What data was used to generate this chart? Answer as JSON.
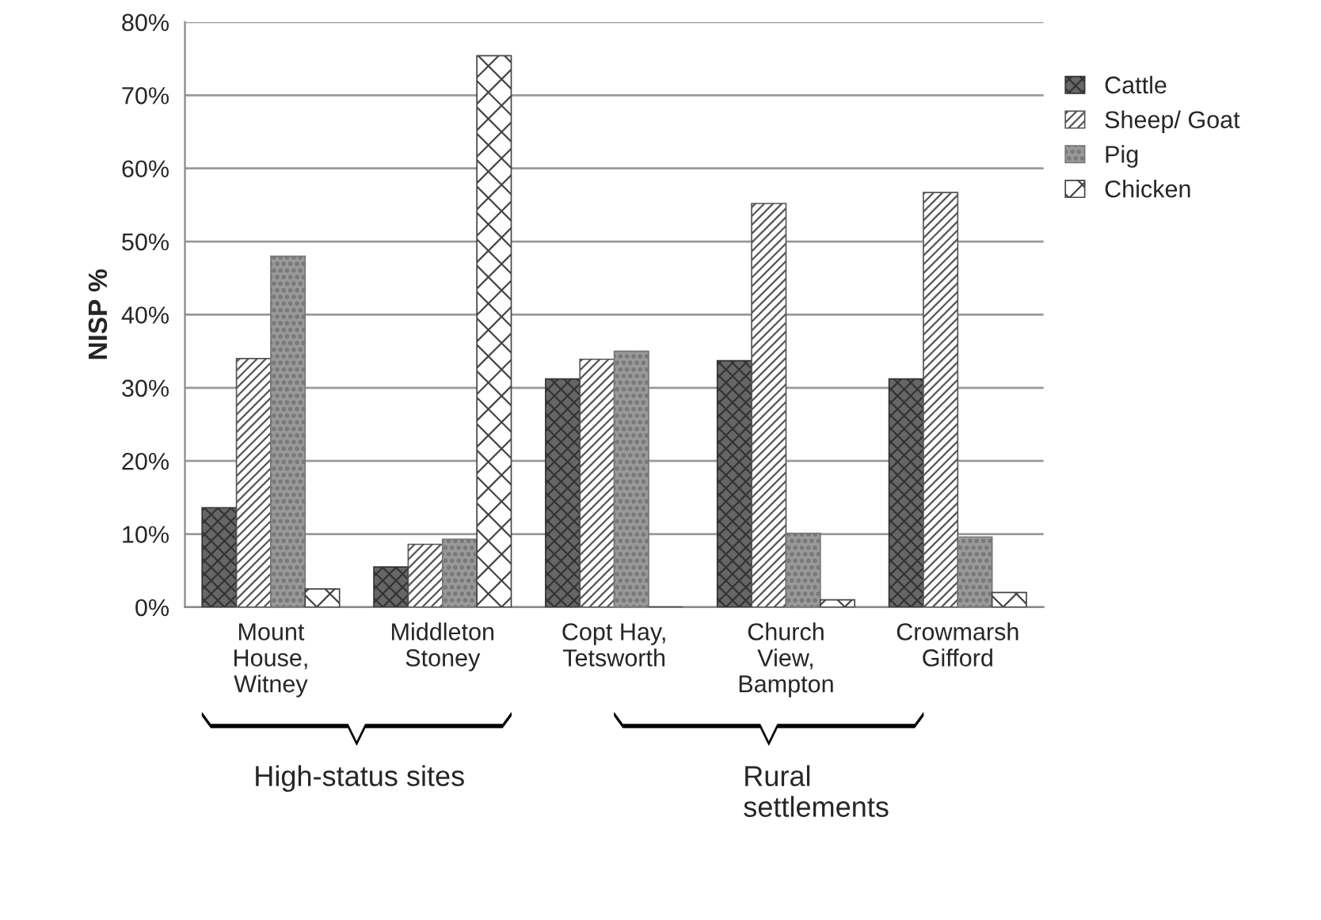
{
  "chart_data": {
    "type": "bar",
    "ylabel": "NISP %",
    "categories": [
      "Mount\nHouse,\nWitney",
      "Middleton\nStoney",
      "Copt Hay,\nTetsworth",
      "Church\nView,\nBampton",
      "Crowmarsh\nGifford"
    ],
    "series": [
      {
        "name": "Cattle",
        "color": "#333333",
        "values": [
          13.6,
          5.5,
          31.2,
          33.7,
          31.2
        ]
      },
      {
        "name": "Sheep/ Goat",
        "color": "#555555",
        "values": [
          34.0,
          8.6,
          33.9,
          55.2,
          56.7
        ]
      },
      {
        "name": "Pig",
        "color": "#777777",
        "values": [
          48.0,
          9.3,
          35.0,
          10.1,
          9.6
        ]
      },
      {
        "name": "Chicken",
        "color": "#444444",
        "values": [
          2.5,
          75.4,
          0,
          1,
          2
        ]
      }
    ],
    "ylim": [
      0,
      80
    ],
    "yticks": [
      {
        "value": 0,
        "label": "0%"
      },
      {
        "value": 10,
        "label": "10%"
      },
      {
        "value": 20,
        "label": "20%"
      },
      {
        "value": 30,
        "label": "30%"
      },
      {
        "value": 40,
        "label": "40%"
      },
      {
        "value": 50,
        "label": "50%"
      },
      {
        "value": 60,
        "label": "60%"
      },
      {
        "value": 70,
        "label": "70%"
      },
      {
        "value": 80,
        "label": "80%"
      }
    ],
    "grid": "y",
    "legend": "right",
    "annotations": [
      "High-status sites",
      "Rural settlements"
    ]
  }
}
